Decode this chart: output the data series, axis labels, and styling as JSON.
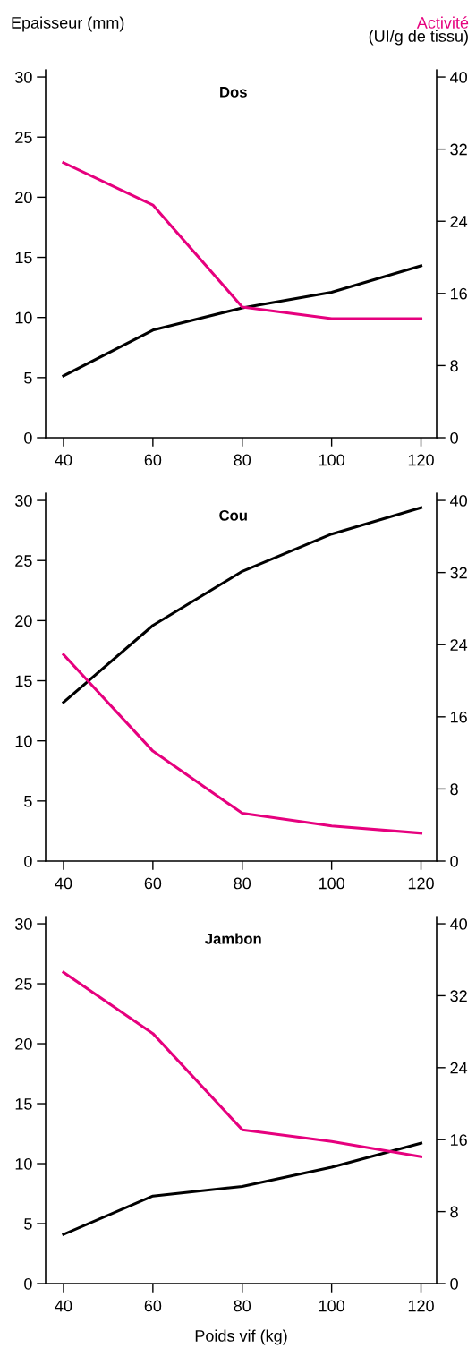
{
  "chart_data": [
    {
      "type": "line",
      "title": "Dos",
      "ylabel": "Epaisseur (mm)",
      "y2label": "Activité\n(UI/g de tissu)",
      "x": [
        40,
        60,
        80,
        100,
        120
      ],
      "series": [
        {
          "color": "#000000",
          "values": [
            5.15,
            8.95,
            10.8,
            12.1,
            14.3
          ]
        },
        {
          "color": "#e6007e",
          "axis": "y2",
          "values": [
            30.5,
            25.8,
            14.5,
            13.2,
            13.2
          ]
        }
      ],
      "xlim": [
        36,
        123.5
      ],
      "xticks": [
        40,
        60,
        80,
        100,
        120
      ],
      "ylim": [
        0,
        30.6
      ],
      "yticks": [
        0,
        5,
        10,
        15,
        20,
        25,
        30
      ],
      "y2lim": [
        0,
        40.8
      ],
      "y2ticks": [
        0,
        8,
        16,
        24,
        32,
        40
      ],
      "grid": false
    },
    {
      "type": "line",
      "title": "Cou",
      "x": [
        40,
        60,
        80,
        100,
        120
      ],
      "series": [
        {
          "color": "#000000",
          "values": [
            13.2,
            19.6,
            24.1,
            27.2,
            29.4
          ]
        },
        {
          "color": "#e6007e",
          "axis": "y2",
          "values": [
            22.9,
            12.2,
            5.3,
            3.9,
            3.1
          ]
        }
      ],
      "xlim": [
        36,
        123.5
      ],
      "xticks": [
        40,
        60,
        80,
        100,
        120
      ],
      "ylim": [
        0,
        30.6
      ],
      "yticks": [
        0,
        5,
        10,
        15,
        20,
        25,
        30
      ],
      "y2lim": [
        0,
        40.8
      ],
      "y2ticks": [
        0,
        8,
        16,
        24,
        32,
        40
      ],
      "grid": false
    },
    {
      "type": "line",
      "title": "Jambon",
      "xlabel": "Poids vif (kg)",
      "x": [
        40,
        60,
        80,
        100,
        120
      ],
      "series": [
        {
          "color": "#000000",
          "values": [
            4.1,
            7.3,
            8.1,
            9.7,
            11.7
          ]
        },
        {
          "color": "#e6007e",
          "axis": "y2",
          "values": [
            34.6,
            27.8,
            17.1,
            15.8,
            14.1
          ]
        }
      ],
      "xlim": [
        36,
        123.5
      ],
      "xticks": [
        40,
        60,
        80,
        100,
        120
      ],
      "ylim": [
        0,
        30.6
      ],
      "yticks": [
        0,
        5,
        10,
        15,
        20,
        25,
        30
      ],
      "y2lim": [
        0,
        40.8
      ],
      "y2ticks": [
        0,
        8,
        16,
        24,
        32,
        40
      ],
      "grid": false
    }
  ]
}
